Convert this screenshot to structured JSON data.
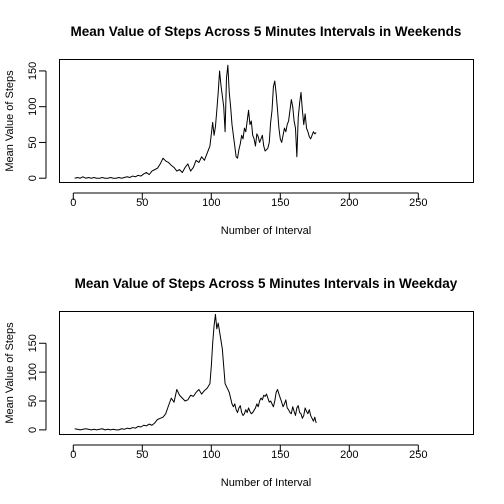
{
  "chart_data": [
    {
      "type": "line",
      "title": "Mean Value of Steps Across 5 Minutes Intervals in Weekends",
      "xlabel": "Number of Interval",
      "ylabel": "Mean Value of Steps",
      "xlim": [
        -10,
        290
      ],
      "ylim": [
        -6,
        166
      ],
      "xticks": [
        "0",
        "50",
        "100",
        "150",
        "200",
        "250"
      ],
      "yticks": [
        "0",
        "50",
        "100",
        "150"
      ],
      "grid": false,
      "series": [
        {
          "x": [
            1,
            3,
            5,
            7,
            9,
            11,
            13,
            15,
            17,
            19,
            21,
            23,
            25,
            27,
            29,
            31,
            33,
            35,
            37,
            39,
            41,
            43,
            45,
            47,
            49,
            51,
            53,
            55,
            57,
            59,
            61,
            63,
            65,
            67,
            69,
            71,
            73,
            75,
            77,
            79,
            81,
            83,
            85,
            87,
            89,
            91,
            93,
            95,
            97,
            99,
            101,
            102,
            103,
            104,
            105,
            106,
            107,
            108,
            109,
            110,
            111,
            112,
            113,
            114,
            115,
            116,
            117,
            118,
            119,
            120,
            121,
            122,
            123,
            124,
            125,
            126,
            127,
            128,
            129,
            130,
            131,
            132,
            133,
            134,
            135,
            136,
            137,
            138,
            139,
            140,
            141,
            142,
            143,
            144,
            145,
            146,
            147,
            148,
            149,
            150,
            151,
            152,
            153,
            154,
            155,
            156,
            157,
            158,
            159,
            160,
            161,
            162,
            163,
            164,
            165,
            166,
            167,
            168,
            169,
            170,
            171,
            172,
            173,
            174,
            175,
            176
          ],
          "values": [
            0,
            1,
            0,
            2,
            0,
            1,
            0,
            1,
            0,
            0,
            1,
            0,
            0,
            1,
            0,
            0,
            1,
            0,
            1,
            2,
            1,
            3,
            2,
            4,
            3,
            6,
            8,
            5,
            10,
            12,
            14,
            20,
            28,
            24,
            22,
            18,
            15,
            10,
            12,
            8,
            15,
            20,
            10,
            15,
            25,
            22,
            30,
            25,
            35,
            45,
            78,
            60,
            72,
            95,
            120,
            150,
            130,
            115,
            100,
            65,
            140,
            158,
            120,
            100,
            75,
            60,
            45,
            30,
            28,
            40,
            48,
            60,
            55,
            70,
            65,
            80,
            95,
            75,
            80,
            60,
            55,
            45,
            62,
            58,
            50,
            55,
            60,
            45,
            38,
            40,
            42,
            50,
            78,
            95,
            128,
            136,
            118,
            95,
            70,
            55,
            50,
            60,
            70,
            65,
            75,
            80,
            95,
            110,
            100,
            80,
            70,
            30,
            85,
            105,
            120,
            95,
            75,
            90,
            70,
            65,
            58,
            55,
            60,
            65,
            62,
            64
          ]
        }
      ]
    },
    {
      "type": "line",
      "title": "Mean Value of Steps Across 5 Minutes Intervals in Weekday",
      "xlabel": "Number of Interval",
      "ylabel": "Mean Value of Steps",
      "xlim": [
        -10,
        290
      ],
      "ylim": [
        -8,
        205
      ],
      "xticks": [
        "0",
        "50",
        "100",
        "150",
        "200",
        "250"
      ],
      "yticks": [
        "0",
        "50",
        "100",
        "150"
      ],
      "grid": false,
      "series": [
        {
          "x": [
            1,
            3,
            5,
            7,
            9,
            11,
            13,
            15,
            17,
            19,
            21,
            23,
            25,
            27,
            29,
            31,
            33,
            35,
            37,
            39,
            41,
            43,
            45,
            47,
            49,
            51,
            53,
            55,
            57,
            59,
            61,
            63,
            65,
            67,
            69,
            71,
            73,
            75,
            77,
            79,
            81,
            83,
            85,
            87,
            89,
            91,
            93,
            95,
            97,
            99,
            100,
            101,
            102,
            103,
            104,
            105,
            106,
            107,
            108,
            109,
            110,
            111,
            112,
            113,
            114,
            115,
            116,
            117,
            118,
            119,
            120,
            121,
            122,
            123,
            124,
            125,
            126,
            127,
            128,
            129,
            130,
            131,
            132,
            133,
            134,
            135,
            136,
            137,
            138,
            139,
            140,
            141,
            142,
            143,
            144,
            145,
            146,
            147,
            148,
            149,
            150,
            151,
            152,
            153,
            154,
            155,
            156,
            157,
            158,
            159,
            160,
            161,
            162,
            163,
            164,
            165,
            166,
            167,
            168,
            169,
            170,
            171,
            172,
            173,
            174,
            175,
            176
          ],
          "values": [
            2,
            1,
            0,
            1,
            2,
            1,
            0,
            1,
            0,
            1,
            2,
            0,
            1,
            0,
            1,
            0,
            0,
            2,
            1,
            3,
            2,
            4,
            3,
            6,
            5,
            8,
            7,
            10,
            8,
            12,
            18,
            20,
            22,
            28,
            42,
            55,
            48,
            70,
            60,
            55,
            50,
            52,
            60,
            58,
            65,
            70,
            62,
            68,
            72,
            80,
            110,
            150,
            180,
            200,
            175,
            185,
            170,
            155,
            140,
            110,
            80,
            75,
            70,
            65,
            55,
            45,
            40,
            45,
            35,
            30,
            38,
            42,
            30,
            25,
            28,
            35,
            30,
            38,
            32,
            28,
            30,
            34,
            38,
            45,
            40,
            50,
            55,
            52,
            60,
            58,
            62,
            55,
            48,
            50,
            45,
            40,
            50,
            65,
            70,
            62,
            55,
            48,
            40,
            45,
            52,
            38,
            35,
            30,
            28,
            40,
            32,
            25,
            38,
            42,
            30,
            28,
            20,
            25,
            38,
            32,
            28,
            35,
            25,
            20,
            15,
            22,
            12
          ]
        }
      ]
    }
  ]
}
